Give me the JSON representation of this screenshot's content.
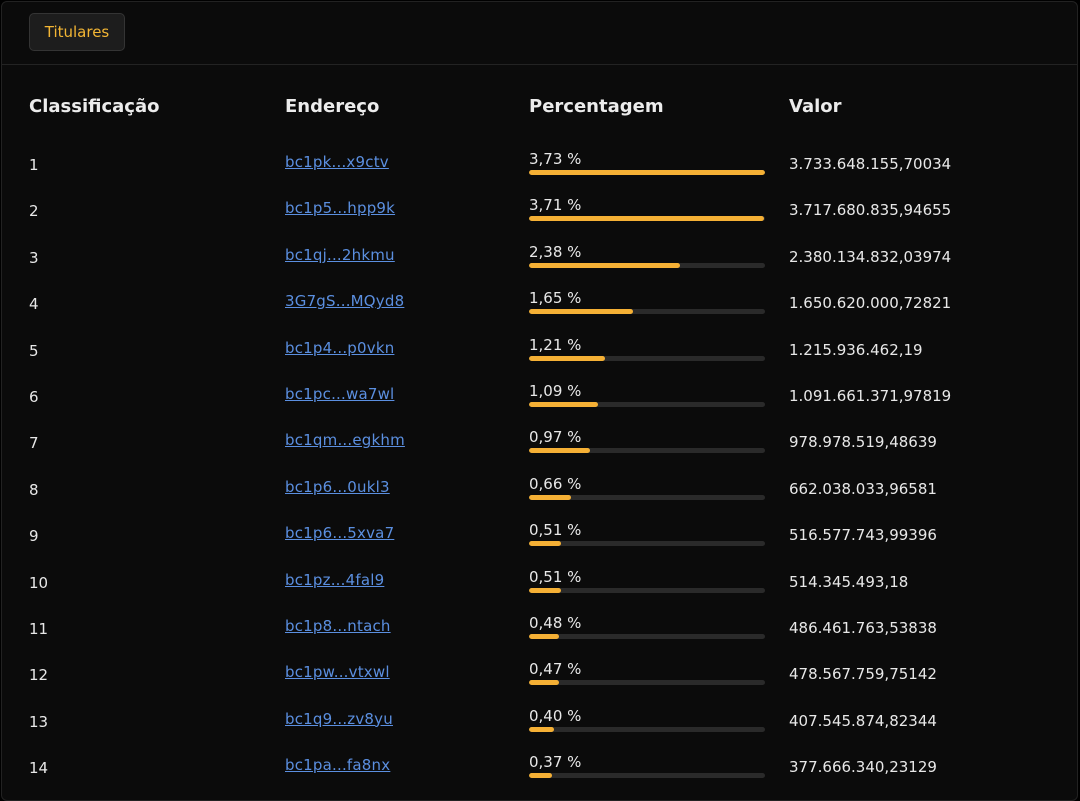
{
  "tab": {
    "label": "Titulares"
  },
  "headers": {
    "rank": "Classificação",
    "address": "Endereço",
    "percent": "Percentagem",
    "value": "Valor"
  },
  "colors": {
    "accent": "#f5b035",
    "link": "#5b8fe0",
    "track": "#2a2a2a"
  },
  "rows": [
    {
      "rank": "1",
      "address": "bc1pk...x9ctv",
      "percent": "3,73 %",
      "fraction": 1.0,
      "value": "3.733.648.155,70034"
    },
    {
      "rank": "2",
      "address": "bc1p5...hpp9k",
      "percent": "3,71 %",
      "fraction": 0.995,
      "value": "3.717.680.835,94655"
    },
    {
      "rank": "3",
      "address": "bc1qj...2hkmu",
      "percent": "2,38 %",
      "fraction": 0.638,
      "value": "2.380.134.832,03974"
    },
    {
      "rank": "4",
      "address": "3G7gS...MQyd8",
      "percent": "1,65 %",
      "fraction": 0.442,
      "value": "1.650.620.000,72821"
    },
    {
      "rank": "5",
      "address": "bc1p4...p0vkn",
      "percent": "1,21 %",
      "fraction": 0.324,
      "value": "1.215.936.462,19"
    },
    {
      "rank": "6",
      "address": "bc1pc...wa7wl",
      "percent": "1,09 %",
      "fraction": 0.292,
      "value": "1.091.661.371,97819"
    },
    {
      "rank": "7",
      "address": "bc1qm...egkhm",
      "percent": "0,97 %",
      "fraction": 0.26,
      "value": "978.978.519,48639"
    },
    {
      "rank": "8",
      "address": "bc1p6...0ukl3",
      "percent": "0,66 %",
      "fraction": 0.177,
      "value": "662.038.033,96581"
    },
    {
      "rank": "9",
      "address": "bc1p6...5xva7",
      "percent": "0,51 %",
      "fraction": 0.137,
      "value": "516.577.743,99396"
    },
    {
      "rank": "10",
      "address": "bc1pz...4fal9",
      "percent": "0,51 %",
      "fraction": 0.137,
      "value": "514.345.493,18"
    },
    {
      "rank": "11",
      "address": "bc1p8...ntach",
      "percent": "0,48 %",
      "fraction": 0.129,
      "value": "486.461.763,53838"
    },
    {
      "rank": "12",
      "address": "bc1pw...vtxwl",
      "percent": "0,47 %",
      "fraction": 0.126,
      "value": "478.567.759,75142"
    },
    {
      "rank": "13",
      "address": "bc1q9...zv8yu",
      "percent": "0,40 %",
      "fraction": 0.107,
      "value": "407.545.874,82344"
    },
    {
      "rank": "14",
      "address": "bc1pa...fa8nx",
      "percent": "0,37 %",
      "fraction": 0.099,
      "value": "377.666.340,23129"
    }
  ]
}
